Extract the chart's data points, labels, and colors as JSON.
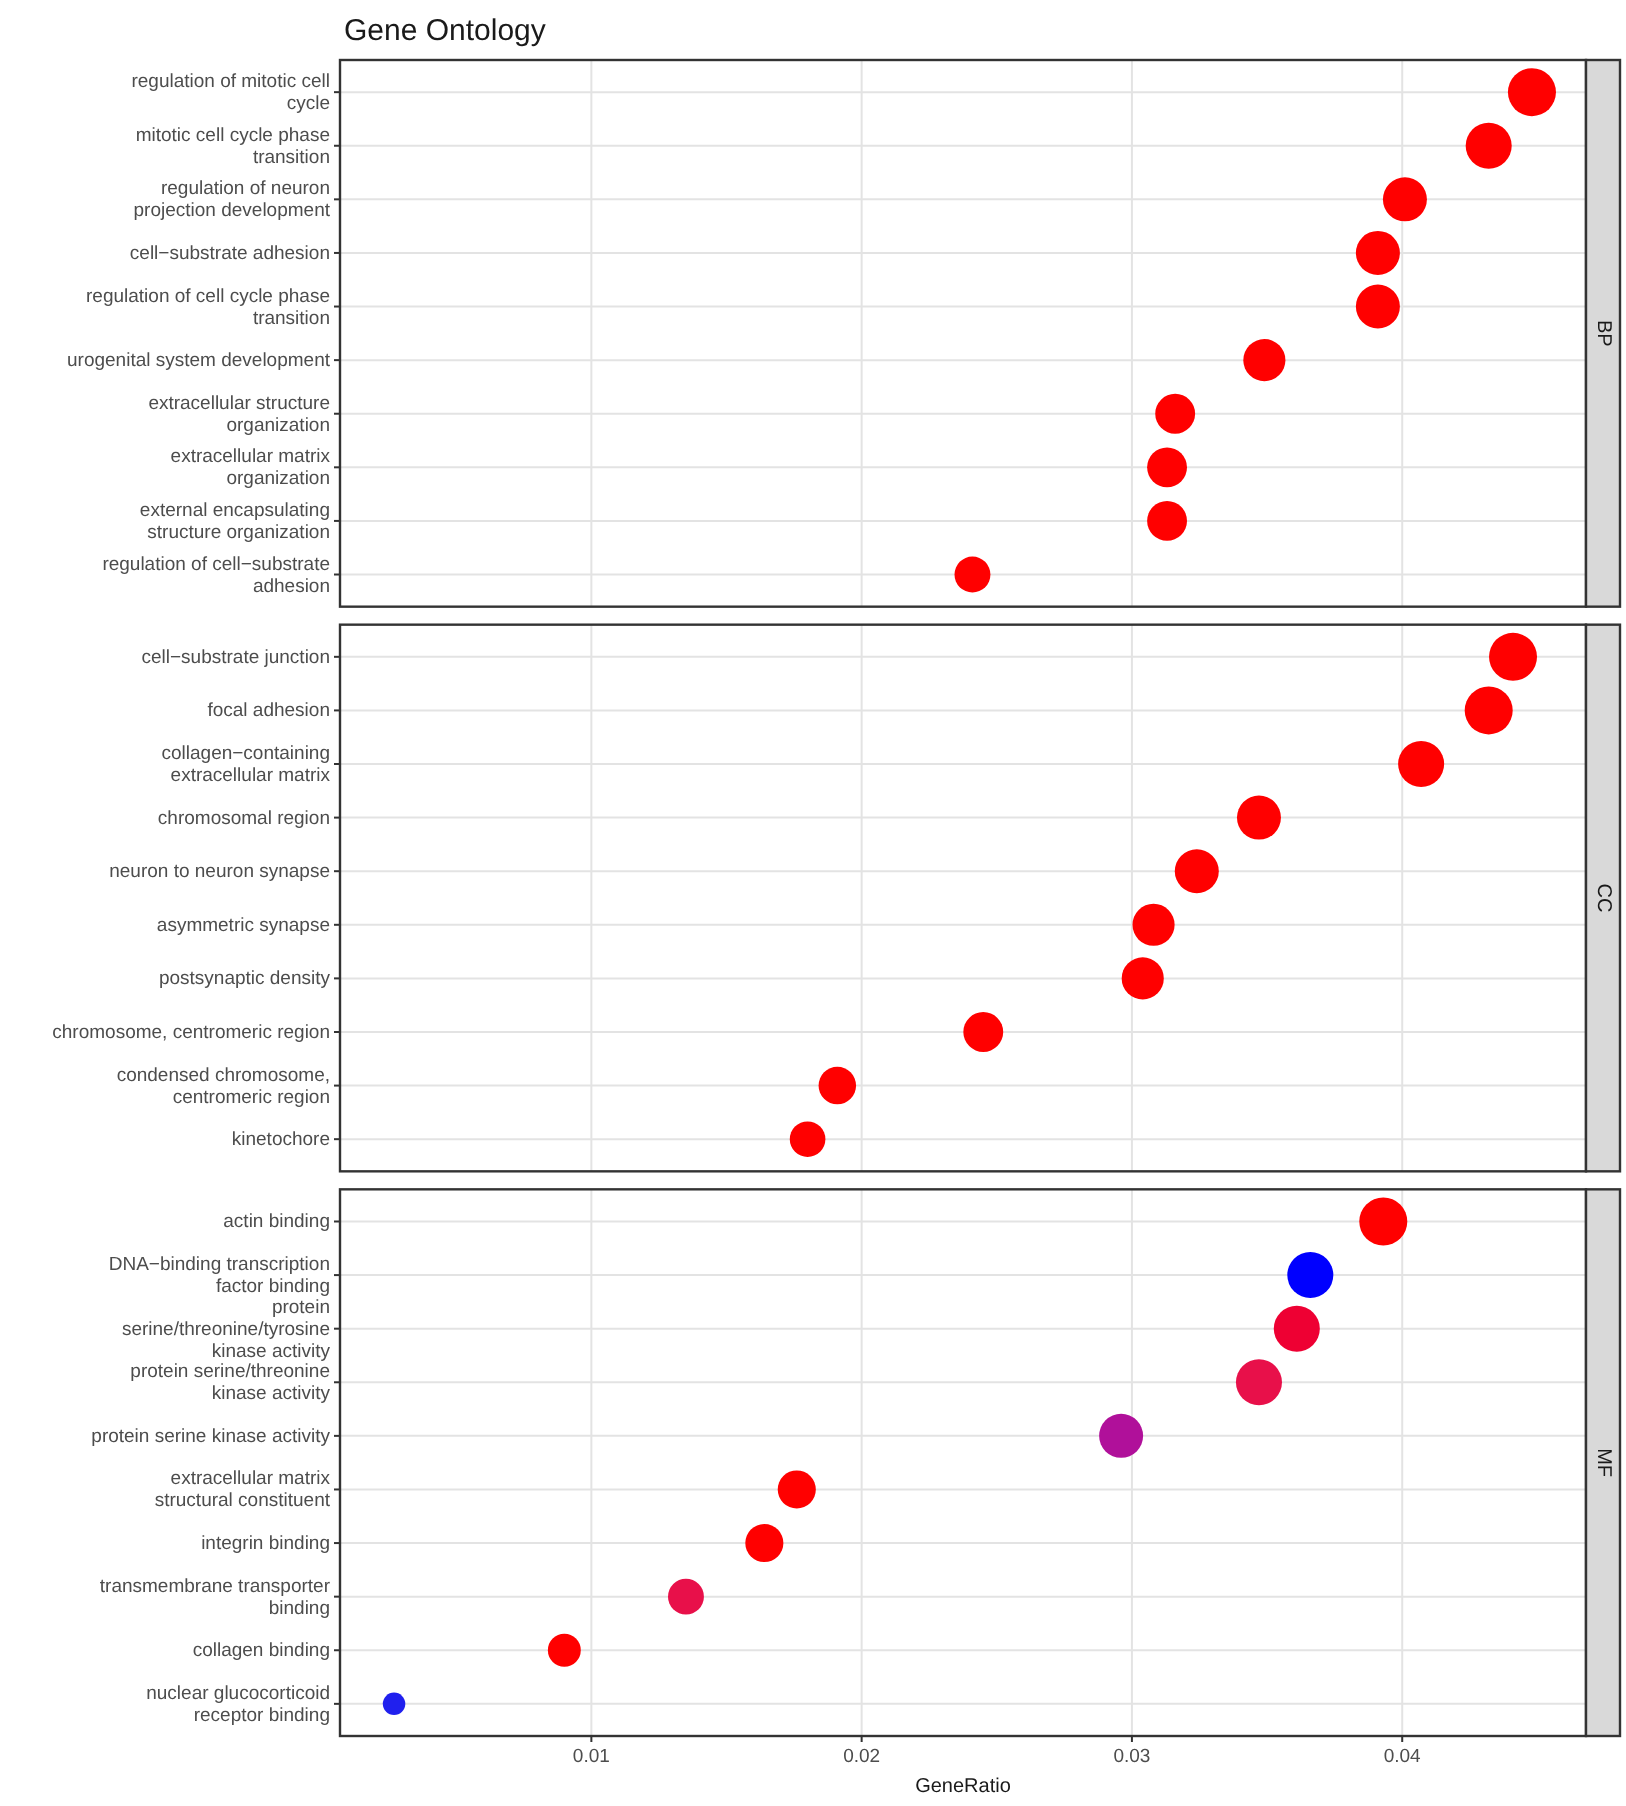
{
  "chart_data": [
    {
      "type": "bubble",
      "orientation": "horizontal",
      "title": "Gene Ontology",
      "annotations": [
        "BP"
      ],
      "tick_labels": "y",
      "grid": true,
      "xlim": [
        0.0007,
        0.0468
      ],
      "xticks": [
        0.01,
        0.02,
        0.03,
        0.04
      ],
      "categories": [
        "regulation of mitotic cell cycle",
        "mitotic cell cycle phase transition",
        "regulation of neuron projection development",
        "cell−substrate adhesion",
        "regulation of cell cycle phase transition",
        "urogenital system development",
        "extracellular structure organization",
        "extracellular matrix organization",
        "external encapsulating structure organization",
        "regulation of cell−substrate adhesion"
      ],
      "values": [
        0.0448,
        0.0432,
        0.0401,
        0.0391,
        0.0391,
        0.0349,
        0.0316,
        0.0313,
        0.0313,
        0.0241
      ],
      "sizes": [
        1,
        0.92,
        0.84,
        0.84,
        0.84,
        0.77,
        0.69,
        0.69,
        0.69,
        0.56
      ],
      "colors": [
        "#ff0000",
        "#ff0000",
        "#ff0000",
        "#ff0000",
        "#ff0000",
        "#ff0000",
        "#ff0000",
        "#ff0000",
        "#ff0000",
        "#ff0000"
      ]
    },
    {
      "type": "bubble",
      "orientation": "horizontal",
      "annotations": [
        "CC"
      ],
      "tick_labels": "y",
      "grid": true,
      "xlim": [
        0.0007,
        0.0468
      ],
      "xticks": [
        0.01,
        0.02,
        0.03,
        0.04
      ],
      "categories": [
        "cell−substrate junction",
        "focal adhesion",
        "collagen−containing extracellular matrix",
        "chromosomal region",
        "neuron to neuron synapse",
        "asymmetric synapse",
        "postsynaptic density",
        "chromosome, centromeric region",
        "condensed chromosome, centromeric region",
        "kinetochore"
      ],
      "values": [
        0.0441,
        0.0432,
        0.0407,
        0.0347,
        0.0324,
        0.0308,
        0.0304,
        0.0245,
        0.0191,
        0.018
      ],
      "sizes": [
        1,
        1,
        0.92,
        0.84,
        0.84,
        0.77,
        0.77,
        0.69,
        0.61,
        0.55
      ],
      "colors": [
        "#ff0000",
        "#ff0000",
        "#ff0000",
        "#ff0000",
        "#ff0000",
        "#ff0000",
        "#ff0000",
        "#ff0000",
        "#ff0000",
        "#ff0000"
      ]
    },
    {
      "type": "bubble",
      "orientation": "horizontal",
      "annotations": [
        "MF"
      ],
      "xlabel": "GeneRatio",
      "grid": true,
      "xlim": [
        0.0007,
        0.0468
      ],
      "xticks": [
        0.01,
        0.02,
        0.03,
        0.04
      ],
      "categories": [
        "actin binding",
        "DNA−binding transcription factor binding",
        "protein serine/threonine/tyrosine kinase activity",
        "protein serine/threonine kinase activity",
        "protein serine kinase activity",
        "extracellular matrix structural constituent",
        "integrin binding",
        "transmembrane transporter binding",
        "collagen binding",
        "nuclear glucocorticoid receptor binding"
      ],
      "values": [
        0.0393,
        0.0366,
        0.0361,
        0.0347,
        0.0296,
        0.0176,
        0.0164,
        0.0135,
        0.009,
        0.0027
      ],
      "sizes": [
        1,
        0.92,
        0.92,
        0.92,
        0.84,
        0.63,
        0.63,
        0.56,
        0.47,
        0.22
      ],
      "colors": [
        "#ff0000",
        "#0000ff",
        "#ee0033",
        "#e8104a",
        "#b0109a",
        "#ff0000",
        "#ff0000",
        "#e8104a",
        "#ff0000",
        "#2020ee"
      ]
    }
  ]
}
